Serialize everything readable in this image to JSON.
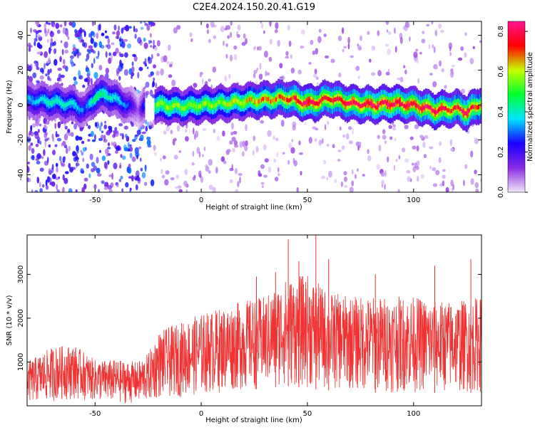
{
  "figure": {
    "title": "C2E4.2024.150.20.41.G19"
  },
  "chart_data": [
    {
      "type": "heatmap",
      "title": "C2E4.2024.150.20.41.G19",
      "xlabel": "Height of straight line (km)",
      "ylabel": "Frequency (Hz)",
      "xlim": [
        -82,
        132
      ],
      "ylim": [
        -50,
        48
      ],
      "x_ticks": [
        "-50",
        "0",
        "50",
        "100"
      ],
      "y_ticks": [
        "-40",
        "-20",
        "0",
        "20",
        "40"
      ],
      "colorbar": {
        "label": "Normalized spectral amplitude",
        "range": [
          0.0,
          0.85
        ],
        "ticks": [
          "0.0",
          "0.2",
          "0.4",
          "0.6",
          "0.8"
        ],
        "colors": [
          "#f2e6fb",
          "#8a2be2",
          "#1a00ff",
          "#00e5ff",
          "#00ff30",
          "#c8ff00",
          "#ff0000",
          "#ff1493"
        ]
      },
      "ridge": {
        "description_x": [
          -82,
          -70,
          -60,
          -55,
          -50,
          -45,
          -40,
          -35,
          -30,
          -25,
          -20,
          -10,
          0,
          10,
          20,
          30,
          40,
          50,
          55,
          60,
          70,
          80,
          90,
          100,
          110,
          120,
          125,
          132
        ],
        "frequency": [
          3,
          2,
          0,
          -3,
          5,
          6,
          3,
          0,
          -2,
          0,
          0,
          -1,
          0,
          1,
          2,
          3,
          4,
          1,
          2,
          4,
          1,
          0,
          1,
          0,
          -3,
          -2,
          -4,
          1
        ],
        "peak_amplitude": [
          0.35,
          0.45,
          0.4,
          0.3,
          0.5,
          0.45,
          0.4,
          0.3,
          0.1,
          0.45,
          0.6,
          0.6,
          0.6,
          0.6,
          0.65,
          0.7,
          0.75,
          0.85,
          0.8,
          0.8,
          0.8,
          0.85,
          0.85,
          0.8,
          0.85,
          0.75,
          0.85,
          0.7
        ]
      }
    },
    {
      "type": "line",
      "xlabel": "Height of straight line (km)",
      "ylabel": "SNR (10 * v/v)",
      "xlim": [
        -82,
        132
      ],
      "ylim": [
        0,
        3900
      ],
      "x_ticks": [
        "-50",
        "0",
        "50",
        "100"
      ],
      "y_ticks": [
        "1000",
        "2000",
        "3000"
      ],
      "color": "#f03232",
      "envelope": {
        "x": [
          -82,
          -70,
          -60,
          -50,
          -40,
          -30,
          -25,
          -20,
          -10,
          0,
          10,
          20,
          30,
          40,
          50,
          60,
          70,
          80,
          90,
          100,
          110,
          120,
          132
        ],
        "upper": [
          1000,
          1350,
          1400,
          1050,
          1050,
          1000,
          1200,
          1700,
          1900,
          2100,
          2250,
          2400,
          2500,
          2900,
          3000,
          2600,
          2500,
          2500,
          2500,
          2500,
          2400,
          2400,
          2500
        ],
        "lower": [
          50,
          100,
          150,
          100,
          50,
          50,
          80,
          150,
          200,
          250,
          300,
          350,
          400,
          450,
          400,
          350,
          350,
          300,
          300,
          300,
          300,
          300,
          300
        ]
      },
      "spikes": [
        {
          "x": 41,
          "y": 3800
        },
        {
          "x": 54,
          "y": 3900
        },
        {
          "x": 60,
          "y": 3350
        },
        {
          "x": 46,
          "y": 3300
        },
        {
          "x": 127,
          "y": 3350
        },
        {
          "x": 110,
          "y": 3200
        },
        {
          "x": 26,
          "y": 2950
        },
        {
          "x": 35,
          "y": 3050
        },
        {
          "x": 82,
          "y": 3000
        }
      ]
    }
  ]
}
